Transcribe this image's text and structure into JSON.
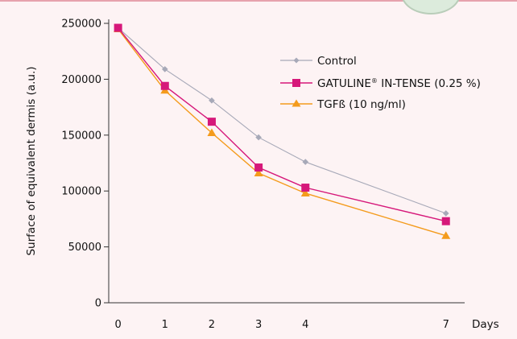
{
  "chart_data": {
    "type": "line",
    "title": "",
    "xlabel": "Days",
    "ylabel": "Surface of equivalent dermis (a.u.)",
    "x": [
      0,
      1,
      2,
      3,
      4,
      7
    ],
    "x_tick_labels": [
      "0",
      "1",
      "2",
      "3",
      "4",
      "7"
    ],
    "xlim": [
      -0.2,
      7.4
    ],
    "ylim": [
      0,
      250000
    ],
    "y_ticks": [
      0,
      50000,
      100000,
      150000,
      200000,
      250000
    ],
    "y_tick_labels": [
      "0",
      "50000",
      "100000",
      "150000",
      "200000",
      "250000"
    ],
    "grid": false,
    "legend_position": "top-right",
    "series": [
      {
        "name": "Control",
        "marker": "diamond",
        "color": "#a7a9b8",
        "values": [
          246000,
          209000,
          181000,
          148000,
          126000,
          80000
        ]
      },
      {
        "name": "GATULINE",
        "name_mark": "®",
        "name_suffix": " IN-TENSE (0.25 %)",
        "marker": "square",
        "color": "#d6187a",
        "values": [
          246000,
          194000,
          162000,
          121000,
          103000,
          73000
        ]
      },
      {
        "name": "TGFß (10 ng/ml)",
        "marker": "triangle",
        "color": "#f49b1c",
        "values": [
          245000,
          190000,
          152000,
          116000,
          98000,
          60000
        ]
      }
    ]
  }
}
